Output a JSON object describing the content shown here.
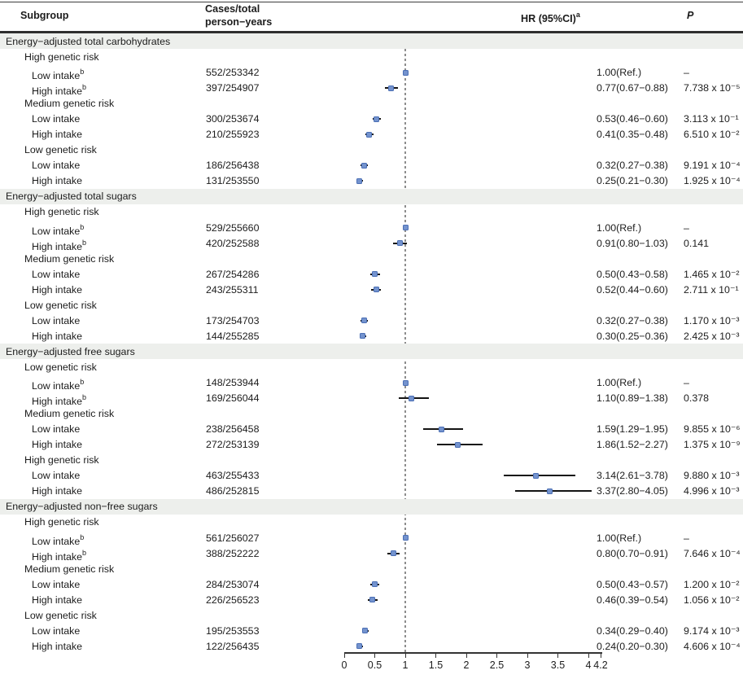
{
  "figure": {
    "columns": {
      "subgroup": "Subgroup",
      "cases_line1": "Cases/total",
      "cases_line2": "person−years",
      "hr": "HR (95%CI)",
      "hr_sup": "a",
      "p": "P"
    },
    "colors": {
      "marker_fill": "#7493ce",
      "marker_border": "#4b6fb5",
      "ci_line": "#141414",
      "section_band": "#edefec",
      "reference_line": "#8d8d8d",
      "rule": "#2e2e2e"
    }
  },
  "chart_data": {
    "type": "scatter",
    "variant": "forest-plot",
    "title": "",
    "xlabel": "",
    "x_axis": {
      "range": [
        0,
        4.22
      ],
      "ticks": [
        0,
        0.5,
        1,
        1.5,
        2,
        2.5,
        3,
        3.5,
        4,
        4.2
      ],
      "tick_labels": [
        "0",
        "0.5",
        "1",
        "1.5",
        "2",
        "2.5",
        "3",
        "3.5",
        "4",
        "4.2"
      ],
      "reference_line": 1
    },
    "sections": [
      {
        "title": "Energy−adjusted total carbohydrates",
        "groups": [
          {
            "label": "High genetic risk",
            "rows": [
              {
                "label": "Low intake",
                "sup": "b",
                "cases": "552/253342",
                "ref": true,
                "hr": 1.0,
                "ci": null,
                "hr_text": "1.00(Ref.)",
                "p_text": "–"
              },
              {
                "label": "High intake",
                "sup": "b",
                "cases": "397/254907",
                "ref": false,
                "hr": 0.77,
                "ci": [
                  0.67,
                  0.88
                ],
                "hr_text": "0.77(0.67−0.88)",
                "p_text": "7.738 x 10⁻⁵"
              }
            ]
          },
          {
            "label": "Medium genetic risk",
            "rows": [
              {
                "label": "Low intake",
                "sup": "",
                "cases": "300/253674",
                "ref": false,
                "hr": 0.53,
                "ci": [
                  0.46,
                  0.6
                ],
                "hr_text": "0.53(0.46−0.60)",
                "p_text": "3.113 x 10⁻¹"
              },
              {
                "label": "High intake",
                "sup": "",
                "cases": "210/255923",
                "ref": false,
                "hr": 0.41,
                "ci": [
                  0.35,
                  0.48
                ],
                "hr_text": "0.41(0.35−0.48)",
                "p_text": "6.510 x 10⁻²"
              }
            ]
          },
          {
            "label": "Low genetic risk",
            "rows": [
              {
                "label": "Low intake",
                "sup": "",
                "cases": "186/256438",
                "ref": false,
                "hr": 0.32,
                "ci": [
                  0.27,
                  0.38
                ],
                "hr_text": "0.32(0.27−0.38)",
                "p_text": "9.191 x 10⁻⁴"
              },
              {
                "label": "High intake",
                "sup": "",
                "cases": "131/253550",
                "ref": false,
                "hr": 0.25,
                "ci": [
                  0.21,
                  0.3
                ],
                "hr_text": "0.25(0.21−0.30)",
                "p_text": "1.925 x 10⁻⁴"
              }
            ]
          }
        ]
      },
      {
        "title": "Energy−adjusted total sugars",
        "groups": [
          {
            "label": "High genetic risk",
            "rows": [
              {
                "label": "Low intake",
                "sup": "b",
                "cases": "529/255660",
                "ref": true,
                "hr": 1.0,
                "ci": null,
                "hr_text": "1.00(Ref.)",
                "p_text": "–"
              },
              {
                "label": "High intake",
                "sup": "b",
                "cases": "420/252588",
                "ref": false,
                "hr": 0.91,
                "ci": [
                  0.8,
                  1.03
                ],
                "hr_text": "0.91(0.80−1.03)",
                "p_text": "0.141"
              }
            ]
          },
          {
            "label": "Medium genetic risk",
            "rows": [
              {
                "label": "Low intake",
                "sup": "",
                "cases": "267/254286",
                "ref": false,
                "hr": 0.5,
                "ci": [
                  0.43,
                  0.58
                ],
                "hr_text": "0.50(0.43−0.58)",
                "p_text": "1.465 x 10⁻²"
              },
              {
                "label": "High intake",
                "sup": "",
                "cases": "243/255311",
                "ref": false,
                "hr": 0.52,
                "ci": [
                  0.44,
                  0.6
                ],
                "hr_text": "0.52(0.44−0.60)",
                "p_text": "2.711 x 10⁻¹"
              }
            ]
          },
          {
            "label": "Low genetic risk",
            "rows": [
              {
                "label": "Low intake",
                "sup": "",
                "cases": "173/254703",
                "ref": false,
                "hr": 0.32,
                "ci": [
                  0.27,
                  0.38
                ],
                "hr_text": "0.32(0.27−0.38)",
                "p_text": "1.170 x 10⁻³"
              },
              {
                "label": "High intake",
                "sup": "",
                "cases": "144/255285",
                "ref": false,
                "hr": 0.3,
                "ci": [
                  0.25,
                  0.36
                ],
                "hr_text": "0.30(0.25−0.36)",
                "p_text": "2.425 x 10⁻³"
              }
            ]
          }
        ]
      },
      {
        "title": "Energy−adjusted free sugars",
        "groups": [
          {
            "label": "Low genetic risk",
            "rows": [
              {
                "label": "Low intake",
                "sup": "b",
                "cases": "148/253944",
                "ref": true,
                "hr": 1.0,
                "ci": null,
                "hr_text": "1.00(Ref.)",
                "p_text": "–"
              },
              {
                "label": "High intake",
                "sup": "b",
                "cases": "169/256044",
                "ref": false,
                "hr": 1.1,
                "ci": [
                  0.89,
                  1.38
                ],
                "hr_text": "1.10(0.89−1.38)",
                "p_text": "0.378"
              }
            ]
          },
          {
            "label": "Medium genetic risk",
            "rows": [
              {
                "label": "Low intake",
                "sup": "",
                "cases": "238/256458",
                "ref": false,
                "hr": 1.59,
                "ci": [
                  1.29,
                  1.95
                ],
                "hr_text": "1.59(1.29−1.95)",
                "p_text": "9.855 x 10⁻⁶"
              },
              {
                "label": "High intake",
                "sup": "",
                "cases": "272/253139",
                "ref": false,
                "hr": 1.86,
                "ci": [
                  1.52,
                  2.27
                ],
                "hr_text": "1.86(1.52−2.27)",
                "p_text": "1.375 x 10⁻⁹"
              }
            ]
          },
          {
            "label": "High genetic risk",
            "rows": [
              {
                "label": "Low intake",
                "sup": "",
                "cases": "463/255433",
                "ref": false,
                "hr": 3.14,
                "ci": [
                  2.61,
                  3.78
                ],
                "hr_text": "3.14(2.61−3.78)",
                "p_text": "9.880 x 10⁻³"
              },
              {
                "label": "High intake",
                "sup": "",
                "cases": "486/252815",
                "ref": false,
                "hr": 3.37,
                "ci": [
                  2.8,
                  4.05
                ],
                "hr_text": "3.37(2.80−4.05)",
                "p_text": "4.996 x 10⁻³"
              }
            ]
          }
        ]
      },
      {
        "title": "Energy−adjusted non−free sugars",
        "groups": [
          {
            "label": "High genetic risk",
            "rows": [
              {
                "label": "Low intake",
                "sup": "b",
                "cases": "561/256027",
                "ref": true,
                "hr": 1.0,
                "ci": null,
                "hr_text": "1.00(Ref.)",
                "p_text": "–"
              },
              {
                "label": "High intake",
                "sup": "b",
                "cases": "388/252222",
                "ref": false,
                "hr": 0.8,
                "ci": [
                  0.7,
                  0.91
                ],
                "hr_text": "0.80(0.70−0.91)",
                "p_text": "7.646 x 10⁻⁴"
              }
            ]
          },
          {
            "label": "Medium genetic risk",
            "rows": [
              {
                "label": "Low intake",
                "sup": "",
                "cases": "284/253074",
                "ref": false,
                "hr": 0.5,
                "ci": [
                  0.43,
                  0.57
                ],
                "hr_text": "0.50(0.43−0.57)",
                "p_text": "1.200 x 10⁻²"
              },
              {
                "label": "High intake",
                "sup": "",
                "cases": "226/256523",
                "ref": false,
                "hr": 0.46,
                "ci": [
                  0.39,
                  0.54
                ],
                "hr_text": "0.46(0.39−0.54)",
                "p_text": "1.056 x 10⁻²"
              }
            ]
          },
          {
            "label": "Low genetic risk",
            "rows": [
              {
                "label": "Low intake",
                "sup": "",
                "cases": "195/253553",
                "ref": false,
                "hr": 0.34,
                "ci": [
                  0.29,
                  0.4
                ],
                "hr_text": "0.34(0.29−0.40)",
                "p_text": "9.174 x 10⁻³"
              },
              {
                "label": "High intake",
                "sup": "",
                "cases": "122/256435",
                "ref": false,
                "hr": 0.24,
                "ci": [
                  0.2,
                  0.3
                ],
                "hr_text": "0.24(0.20−0.30)",
                "p_text": "4.606 x 10⁻⁴"
              }
            ]
          }
        ]
      }
    ]
  }
}
